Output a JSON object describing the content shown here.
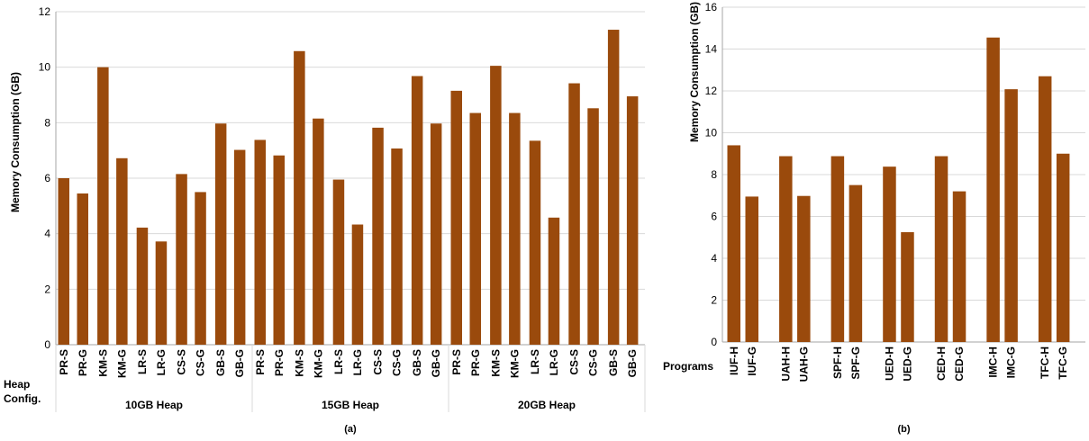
{
  "colors": {
    "bar": "#9a4a0c",
    "grid": "#d9d9d9",
    "axis": "#a6a6a6"
  },
  "chart_data": [
    {
      "type": "bar",
      "id": "a",
      "caption": "(a)",
      "ylabel": "Memory Consumption (GB)",
      "ylim": [
        0,
        12
      ],
      "yticks": [
        "0",
        "2",
        "4",
        "6",
        "8",
        "10",
        "12"
      ],
      "grid": true,
      "side_label_1": "Heap",
      "side_label_2": "Config.",
      "groups": [
        {
          "name": "10GB Heap",
          "pairs": [
            {
              "labels": [
                "PR-S",
                "PR-G"
              ],
              "values": [
                6.0,
                5.45
              ]
            },
            {
              "labels": [
                "KM-S",
                "KM-G"
              ],
              "values": [
                10.0,
                6.72
              ]
            },
            {
              "labels": [
                "LR-S",
                "LR-G"
              ],
              "values": [
                4.22,
                3.72
              ]
            },
            {
              "labels": [
                "CS-S",
                "CS-G"
              ],
              "values": [
                6.15,
                5.5
              ]
            },
            {
              "labels": [
                "GB-S",
                "GB-G"
              ],
              "values": [
                7.97,
                7.02
              ]
            }
          ]
        },
        {
          "name": "15GB Heap",
          "pairs": [
            {
              "labels": [
                "PR-S",
                "PR-G"
              ],
              "values": [
                7.38,
                6.82
              ]
            },
            {
              "labels": [
                "KM-S",
                "KM-G"
              ],
              "values": [
                10.58,
                8.15
              ]
            },
            {
              "labels": [
                "LR-S",
                "LR-G"
              ],
              "values": [
                5.95,
                4.33
              ]
            },
            {
              "labels": [
                "CS-S",
                "CS-G"
              ],
              "values": [
                7.82,
                7.07
              ]
            },
            {
              "labels": [
                "GB-S",
                "GB-G"
              ],
              "values": [
                9.68,
                7.97
              ]
            }
          ]
        },
        {
          "name": "20GB Heap",
          "pairs": [
            {
              "labels": [
                "PR-S",
                "PR-G"
              ],
              "values": [
                9.15,
                8.35
              ]
            },
            {
              "labels": [
                "KM-S",
                "KM-G"
              ],
              "values": [
                10.05,
                8.35
              ]
            },
            {
              "labels": [
                "LR-S",
                "LR-G"
              ],
              "values": [
                7.35,
                4.58
              ]
            },
            {
              "labels": [
                "CS-S",
                "CS-G"
              ],
              "values": [
                9.42,
                8.52
              ]
            },
            {
              "labels": [
                "GB-S",
                "GB-G"
              ],
              "values": [
                11.35,
                8.95
              ]
            }
          ]
        }
      ]
    },
    {
      "type": "bar",
      "id": "b",
      "caption": "(b)",
      "ylabel": "Memory Consumption (GB)",
      "ylim": [
        0,
        16
      ],
      "yticks": [
        "0",
        "2",
        "4",
        "6",
        "8",
        "10",
        "12",
        "14",
        "16"
      ],
      "grid": true,
      "side_label_1": "Programs",
      "pairs": [
        {
          "labels": [
            "IUF-H",
            "IUF-G"
          ],
          "values": [
            9.4,
            6.95
          ]
        },
        {
          "labels": [
            "UAH-H",
            "UAH-G"
          ],
          "values": [
            8.88,
            6.98
          ]
        },
        {
          "labels": [
            "SPF-H",
            "SPF-G"
          ],
          "values": [
            8.88,
            7.5
          ]
        },
        {
          "labels": [
            "UED-H",
            "UED-G"
          ],
          "values": [
            8.38,
            5.25
          ]
        },
        {
          "labels": [
            "CED-H",
            "CED-G"
          ],
          "values": [
            8.88,
            7.2
          ]
        },
        {
          "labels": [
            "IMC-H",
            "IMC-G"
          ],
          "values": [
            14.55,
            12.08
          ]
        },
        {
          "labels": [
            "TFC-H",
            "TFC-G"
          ],
          "values": [
            12.7,
            9.0
          ]
        }
      ]
    }
  ]
}
